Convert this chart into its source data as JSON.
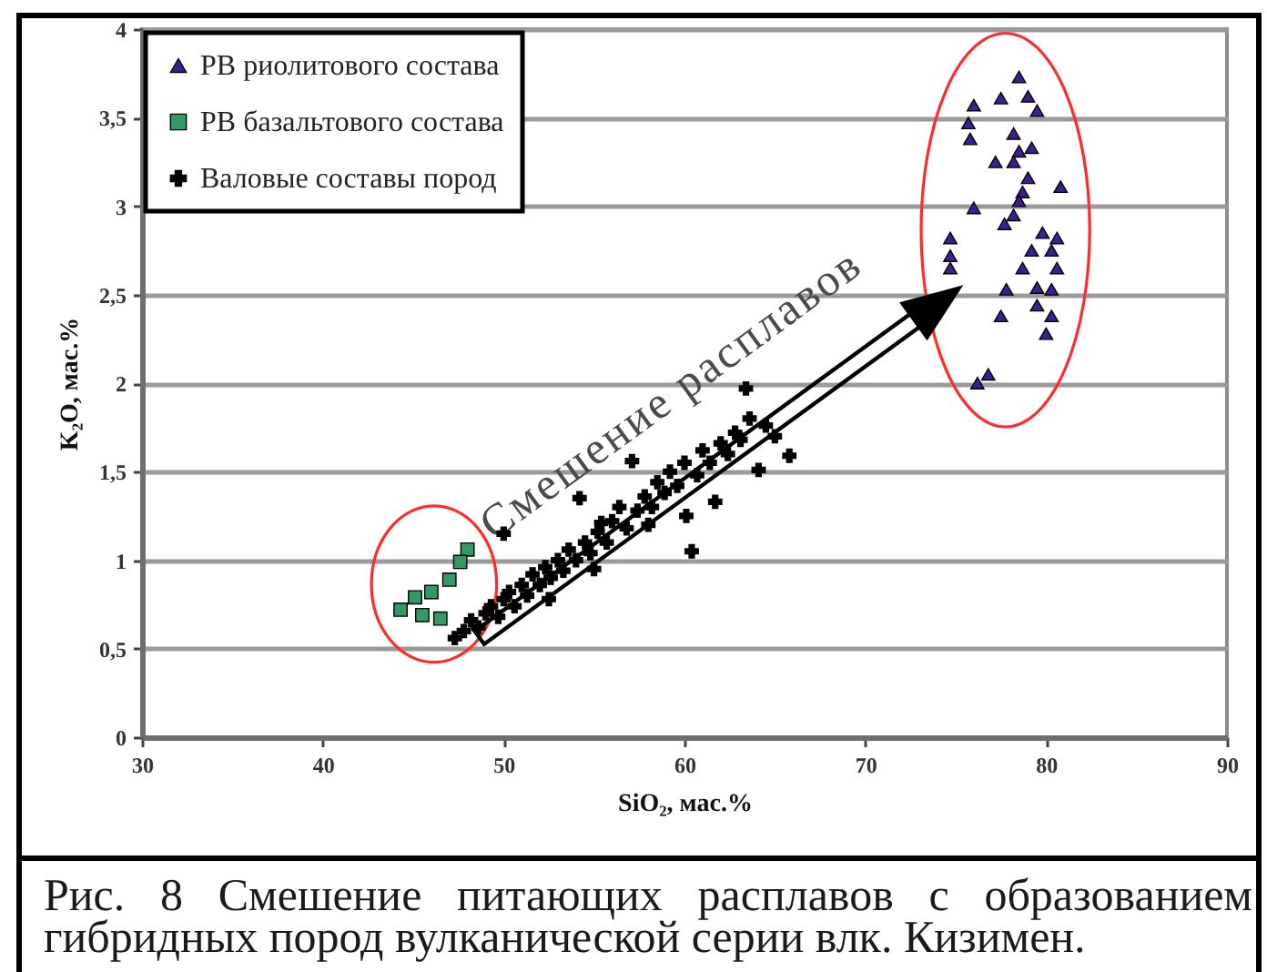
{
  "chart_data": {
    "type": "scatter",
    "xlabel": "SiO₂, мас.%",
    "ylabel": "K₂O, мас.%",
    "annotations": [
      "Смешение расплавов",
      "Рис. 8 Смешение питающих расплавов с образованием гибридных пород вулканической серии влк. Кизимен."
    ],
    "xlim": [
      30,
      90
    ],
    "xticks": [
      30,
      40,
      50,
      60,
      70,
      80,
      90
    ],
    "ylim": [
      0,
      4
    ],
    "yticks": [
      0,
      {
        "value": 0.5,
        "label": "0,5"
      },
      1,
      {
        "value": 1.5,
        "label": "1,5"
      },
      2,
      {
        "value": 2.5,
        "label": "2,5"
      },
      3,
      {
        "value": 3.5,
        "label": "3,5"
      },
      4
    ],
    "grid": "y",
    "legend": "top left",
    "series": [
      {
        "name": "РВ риолитового состава",
        "color": "#3d1f8f",
        "marker": "triangle",
        "x": [
          78.5,
          77.5,
          79.0,
          79.5,
          76.0,
          75.7,
          75.8,
          78.2,
          78.5,
          79.2,
          77.2,
          78.2,
          79.0,
          78.7,
          80.8,
          78.5,
          76.0,
          78.2,
          77.7,
          79.8,
          80.6,
          74.7,
          74.7,
          79.2,
          80.3,
          80.6,
          74.7,
          78.7,
          77.8,
          79.5,
          80.3,
          79.5,
          77.5,
          80.3,
          80.0,
          76.2,
          76.8
        ],
        "values": [
          3.73,
          3.61,
          3.62,
          3.54,
          3.57,
          3.47,
          3.38,
          3.41,
          3.31,
          3.33,
          3.25,
          3.25,
          3.16,
          3.08,
          3.11,
          3.03,
          2.99,
          2.95,
          2.9,
          2.85,
          2.82,
          2.82,
          2.72,
          2.75,
          2.75,
          2.65,
          2.65,
          2.65,
          2.53,
          2.54,
          2.53,
          2.44,
          2.38,
          2.38,
          2.28,
          2.0,
          2.05
        ]
      },
      {
        "name": "РВ базальтового состава",
        "color": "#339966",
        "marker": "square",
        "x": [
          48.0,
          47.6,
          47.0,
          46.0,
          45.1,
          44.3,
          45.5,
          46.5
        ],
        "values": [
          1.06,
          0.99,
          0.89,
          0.82,
          0.79,
          0.72,
          0.69,
          0.67
        ]
      },
      {
        "name": "Валовые составы пород",
        "color": "#000000",
        "marker": "cross",
        "x": [
          47.3,
          47.8,
          48.2,
          48.6,
          49.0,
          49.3,
          49.7,
          50.0,
          50.3,
          50.6,
          51.0,
          51.3,
          51.6,
          52.0,
          52.3,
          52.6,
          53.0,
          53.3,
          53.6,
          54.0,
          54.2,
          54.5,
          54.8,
          55.2,
          55.4,
          55.7,
          56.0,
          56.4,
          56.8,
          57.1,
          57.4,
          57.8,
          58.2,
          58.5,
          58.9,
          59.2,
          59.6,
          60.0,
          60.1,
          60.4,
          60.7,
          61.0,
          61.4,
          61.7,
          62.0,
          62.4,
          62.8,
          63.1,
          63.4,
          63.6,
          64.1,
          64.5,
          65.0,
          65.8,
          50.0,
          52.5,
          55.0,
          58.0
        ],
        "values": [
          0.56,
          0.6,
          0.66,
          0.62,
          0.7,
          0.74,
          0.68,
          0.78,
          0.82,
          0.74,
          0.86,
          0.8,
          0.92,
          0.86,
          0.96,
          0.9,
          1.0,
          0.94,
          1.06,
          1.0,
          1.35,
          1.1,
          1.04,
          1.16,
          1.21,
          1.1,
          1.22,
          1.3,
          1.18,
          1.56,
          1.28,
          1.36,
          1.3,
          1.44,
          1.38,
          1.5,
          1.42,
          1.55,
          1.25,
          1.05,
          1.48,
          1.62,
          1.55,
          1.33,
          1.66,
          1.6,
          1.72,
          1.68,
          1.97,
          1.8,
          1.51,
          1.76,
          1.7,
          1.59,
          1.15,
          0.78,
          0.95,
          1.2
        ]
      }
    ]
  }
}
